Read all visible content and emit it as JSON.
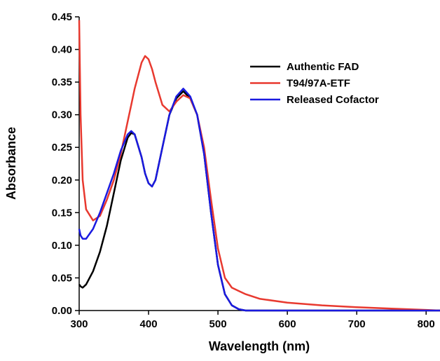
{
  "chart_data": {
    "type": "line",
    "x_label": "Wavelength (nm)",
    "y_label": "Absorbance",
    "x": [
      300,
      302,
      305,
      310,
      320,
      330,
      340,
      350,
      360,
      370,
      375,
      380,
      390,
      395,
      400,
      405,
      410,
      420,
      430,
      440,
      450,
      460,
      470,
      480,
      490,
      500,
      510,
      520,
      530,
      540,
      560,
      600,
      650,
      700,
      750,
      800,
      820
    ],
    "series": [
      {
        "name": "Authentic FAD",
        "color": "#000000",
        "values": [
          0.04,
          0.037,
          0.035,
          0.04,
          0.06,
          0.09,
          0.13,
          0.18,
          0.23,
          0.265,
          0.272,
          0.27,
          0.235,
          0.21,
          0.195,
          0.19,
          0.2,
          0.25,
          0.3,
          0.325,
          0.336,
          0.325,
          0.3,
          0.24,
          0.15,
          0.07,
          0.025,
          0.008,
          0.002,
          0,
          0,
          0,
          0,
          0,
          0,
          0,
          0
        ]
      },
      {
        "name": "T94/97A-ETF",
        "color": "#e8392f",
        "values": [
          0.445,
          0.3,
          0.2,
          0.155,
          0.138,
          0.145,
          0.17,
          0.2,
          0.24,
          0.29,
          0.315,
          0.34,
          0.38,
          0.39,
          0.385,
          0.37,
          0.35,
          0.315,
          0.305,
          0.32,
          0.33,
          0.325,
          0.3,
          0.25,
          0.17,
          0.095,
          0.05,
          0.035,
          0.03,
          0.025,
          0.018,
          0.012,
          0.008,
          0.005,
          0.003,
          0.001,
          0
        ]
      },
      {
        "name": "Released Cofactor",
        "color": "#1a1ae0",
        "values": [
          0.125,
          0.115,
          0.11,
          0.11,
          0.125,
          0.15,
          0.18,
          0.21,
          0.245,
          0.27,
          0.275,
          0.27,
          0.235,
          0.21,
          0.195,
          0.19,
          0.2,
          0.25,
          0.3,
          0.328,
          0.34,
          0.328,
          0.3,
          0.24,
          0.15,
          0.07,
          0.025,
          0.008,
          0.002,
          0,
          0,
          0,
          0,
          0,
          0,
          0,
          0
        ]
      }
    ],
    "xlim": [
      300,
      820
    ],
    "xticks": [
      300,
      400,
      500,
      600,
      700,
      800
    ],
    "ylim": [
      0,
      0.45
    ],
    "yticks": [
      {
        "value": 0,
        "label": "0.00"
      },
      0.05,
      {
        "value": 0.1,
        "label": "0.10"
      },
      0.15,
      {
        "value": 0.2,
        "label": "0.20"
      },
      0.25,
      {
        "value": 0.3,
        "label": "0.30"
      },
      0.35,
      {
        "value": 0.4,
        "label": "0.40"
      },
      0.45
    ],
    "legend": "upper right"
  }
}
